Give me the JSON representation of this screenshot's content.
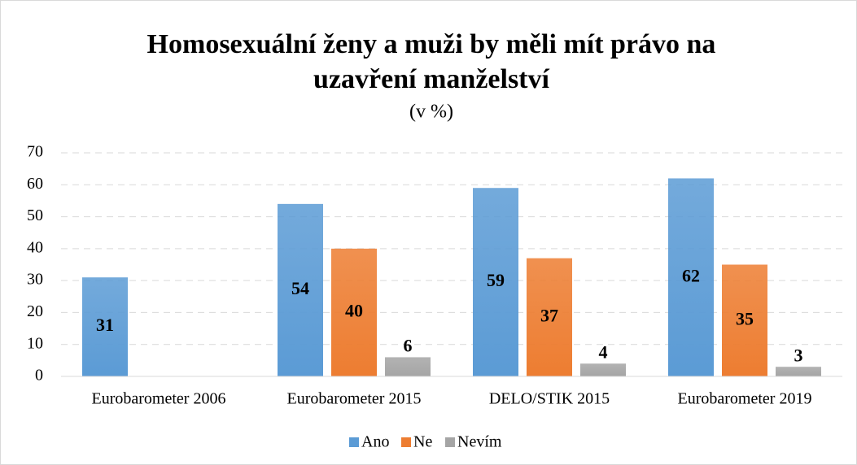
{
  "chart_data": {
    "type": "bar",
    "title": [
      "Homosexuální ženy a muži by měli mít právo na",
      "uzavření manželství"
    ],
    "subtitle": "(v %)",
    "categories": [
      "Eurobarometer 2006",
      "Eurobarometer 2015",
      "DELO/STIK 2015",
      "Eurobarometer 2019"
    ],
    "series": [
      {
        "name": "Ano",
        "color": "#5b9bd5",
        "values": [
          31,
          54,
          59,
          62
        ]
      },
      {
        "name": "Ne",
        "color": "#ed7d31",
        "values": [
          null,
          40,
          37,
          35
        ]
      },
      {
        "name": "Nevím",
        "color": "#a5a5a5",
        "values": [
          null,
          6,
          4,
          3
        ]
      }
    ],
    "ylim": [
      0,
      70
    ],
    "yticks": [
      0,
      10,
      20,
      30,
      40,
      50,
      60,
      70
    ],
    "grid": true,
    "legend": "bottom"
  }
}
